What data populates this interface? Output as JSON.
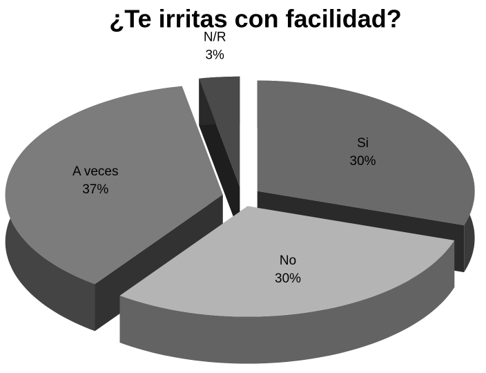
{
  "chart_data": {
    "type": "pie",
    "title": "¿Te irritas con facilidad?",
    "categories": [
      "Si",
      "No",
      "A veces",
      "N/R"
    ],
    "values": [
      30,
      30,
      37,
      3
    ],
    "value_labels": [
      "30%",
      "30%",
      "37%",
      "3%"
    ],
    "colors": [
      "#6a6a6a",
      "#b4b4b4",
      "#7c7c7c",
      "#4a4a4a"
    ]
  }
}
